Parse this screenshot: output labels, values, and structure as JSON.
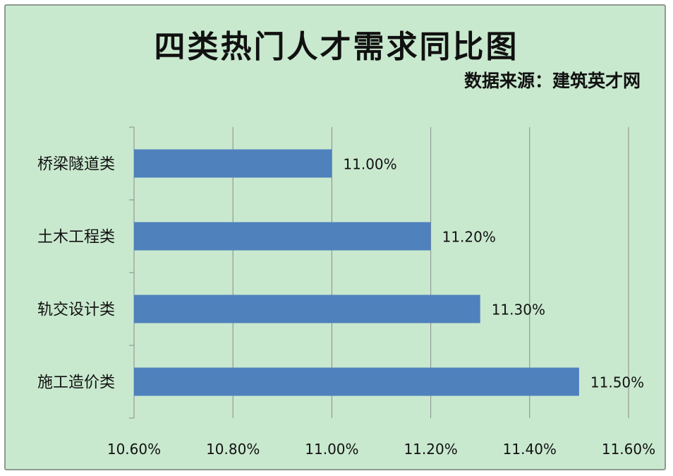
{
  "chart_data": {
    "type": "bar",
    "orientation": "horizontal",
    "title": "四类热门人才需求同比图",
    "source": "数据来源：建筑英才网",
    "categories": [
      "桥梁隧道类",
      "土木工程类",
      "轨交设计类",
      "施工造价类"
    ],
    "values": [
      11.0,
      11.2,
      11.3,
      11.5
    ],
    "data_labels": [
      "11.00%",
      "11.20%",
      "11.30%",
      "11.50%"
    ],
    "xlim": [
      10.6,
      11.6
    ],
    "x_ticks": [
      10.6,
      10.8,
      11.0,
      11.2,
      11.4,
      11.6
    ],
    "x_tick_labels": [
      "10.60%",
      "10.80%",
      "11.00%",
      "11.20%",
      "11.40%",
      "11.60%"
    ],
    "grid": "vertical",
    "legend": "none",
    "bar_color": "#4f81bd",
    "background_color": "#c9e9cf"
  }
}
